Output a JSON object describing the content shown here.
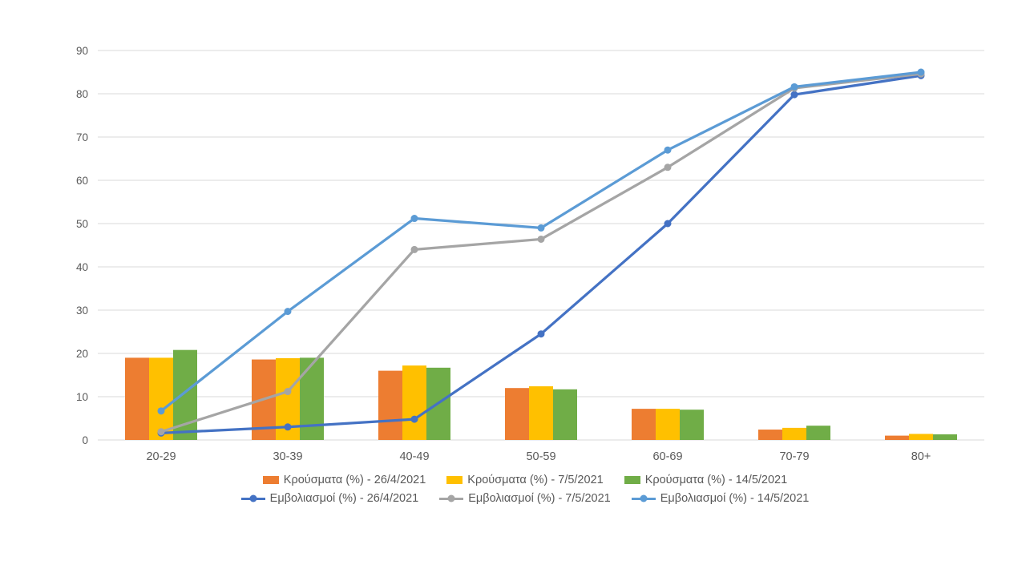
{
  "chart_data": {
    "type": "bar",
    "subtype": "combo-bar-line",
    "title": "",
    "xlabel": "",
    "ylabel": "",
    "categories": [
      "20-29",
      "30-39",
      "40-49",
      "50-59",
      "60-69",
      "70-79",
      "80+"
    ],
    "bar_series": [
      {
        "name": "Κρούσματα (%) - 26/4/2021",
        "color": "#ED7D31",
        "values": [
          19,
          18.6,
          16,
          12,
          7.2,
          2.4,
          1
        ]
      },
      {
        "name": "Κρούσματα (%) - 7/5/2021",
        "color": "#FFC000",
        "values": [
          19,
          18.9,
          17.2,
          12.4,
          7.2,
          2.8,
          1.4
        ]
      },
      {
        "name": "Κρούσματα (%) - 14/5/2021",
        "color": "#70AD47",
        "values": [
          20.8,
          19,
          16.7,
          11.7,
          7,
          3.3,
          1.3
        ]
      }
    ],
    "line_series": [
      {
        "name": "Εμβολιασμοί (%) - 26/4/2021",
        "color": "#4472C4",
        "values": [
          1.6,
          3,
          4.8,
          24.5,
          50,
          79.8,
          84.2
        ]
      },
      {
        "name": "Εμβολιασμοί (%) - 7/5/2021",
        "color": "#A5A5A5",
        "values": [
          1.9,
          11.2,
          44,
          46.4,
          63,
          81.3,
          84.6
        ]
      },
      {
        "name": "Εμβολιασμοί (%) - 14/5/2021",
        "color": "#5B9BD5",
        "values": [
          6.7,
          29.7,
          51.2,
          49,
          67,
          81.6,
          85
        ]
      }
    ],
    "ylim": [
      0,
      90
    ],
    "ytick_step": 10,
    "yticks": [
      "0",
      "10",
      "20",
      "30",
      "40",
      "50",
      "60",
      "70",
      "80",
      "90"
    ],
    "grid": true,
    "legend_position": "bottom",
    "colors": {
      "background": "#FFFFFF",
      "gridline": "#D9D9D9",
      "axis_text": "#595959"
    }
  }
}
